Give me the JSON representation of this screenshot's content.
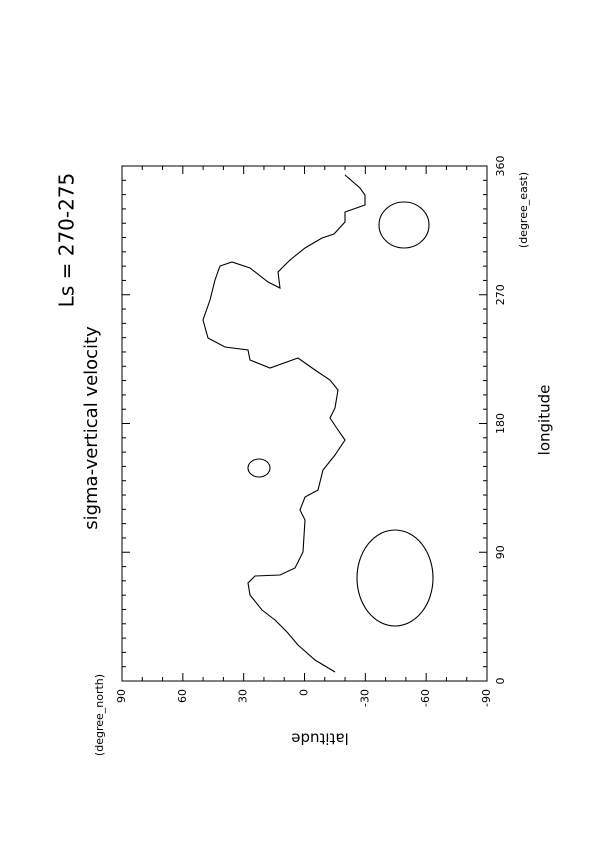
{
  "chart_data": {
    "type": "contour",
    "title": "Ls = 270-275",
    "subtitle": "sigma-vertical velocity",
    "x_label": "longitude",
    "x_unit": "(degree_east)",
    "y_label": "latitude",
    "y_unit": "(degree_north)",
    "xlim": [
      0,
      360
    ],
    "xticks": [
      0,
      90,
      180,
      270,
      360
    ],
    "ylim": [
      -90,
      90
    ],
    "yticks": [
      -90,
      -60,
      -30,
      0,
      30,
      60,
      90
    ]
  }
}
